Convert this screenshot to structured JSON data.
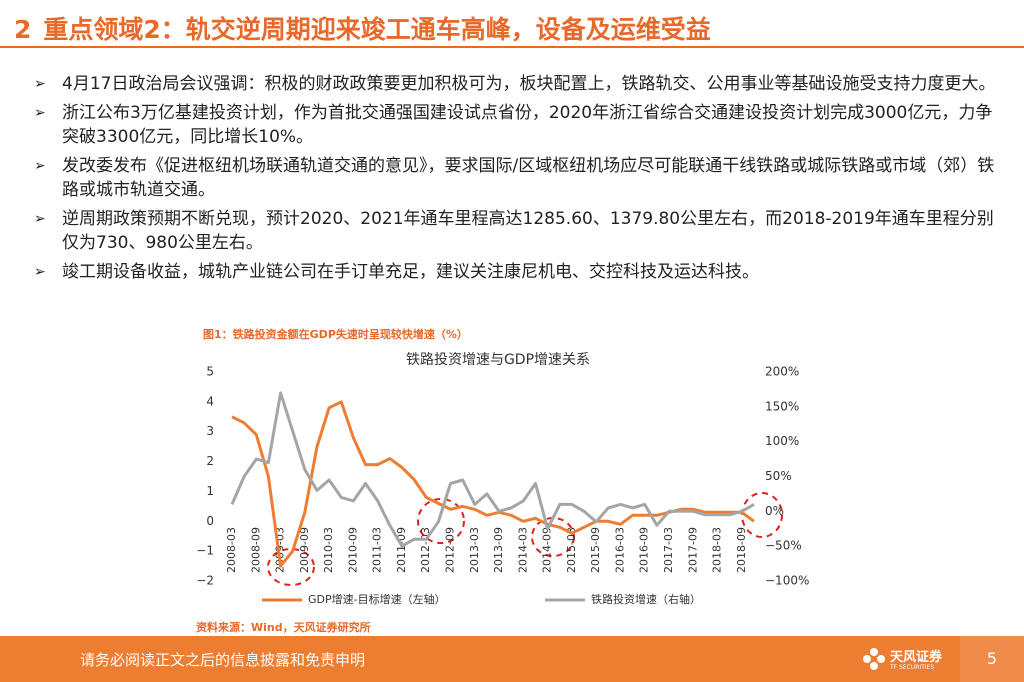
{
  "header": {
    "number": "2",
    "title": "重点领域2：轨交逆周期迎来竣工通车高峰，设备及运维受益"
  },
  "bullets": [
    "4月17日政治局会议强调：积极的财政政策要更加积极可为，板块配置上，铁路轨交、公用事业等基础设施受支持力度更大。",
    "浙江公布3万亿基建投资计划，作为首批交通强国建设试点省份，2020年浙江省综合交通建设投资计划完成3000亿元，力争突破3300亿元，同比增长10%。",
    "发改委发布《促进枢纽机场联通轨道交通的意见》，要求国际/区域枢纽机场应尽可能联通干线铁路或城际铁路或市域（郊）铁路或城市轨道交通。",
    "逆周期政策预期不断兑现，预计2020、2021年通车里程高达1285.60、1379.80公里左右，而2018-2019年通车里程分别仅为730、980公里左右。",
    "竣工期设备收益，城轨产业链公司在手订单充足，建议关注康尼机电、交控科技及运达科技。"
  ],
  "figure": {
    "caption": "图1：铁路投资金额在GDP失速时呈现较快增速（%）",
    "source": "资料来源：Wind，天风证券研究所"
  },
  "chart_data": {
    "type": "line",
    "title": "铁路投资增速与GDP增速关系",
    "categories": [
      "2008-03",
      null,
      "2008-09",
      null,
      "2009-03",
      null,
      "2009-09",
      null,
      "2010-03",
      null,
      "2010-09",
      null,
      "2011-03",
      null,
      "2011-09",
      null,
      "2012-03",
      null,
      "2012-09",
      null,
      "2013-03",
      null,
      "2013-09",
      null,
      "2014-03",
      null,
      "2014-09",
      null,
      "2015-03",
      null,
      "2015-09",
      null,
      "2016-03",
      null,
      "2016-09",
      null,
      "2017-03",
      null,
      "2017-09",
      null,
      "2018-03",
      null,
      "2018-09",
      null
    ],
    "series": [
      {
        "name": "GDP增速-目标增速（左轴）",
        "color": "#ed7d31",
        "axis": "y",
        "values": [
          3.5,
          3.3,
          2.9,
          1.5,
          -1.5,
          -1.0,
          0.3,
          2.5,
          3.8,
          4.0,
          2.8,
          1.9,
          1.9,
          2.1,
          1.8,
          1.4,
          0.8,
          0.6,
          0.4,
          0.5,
          0.4,
          0.2,
          0.3,
          0.2,
          0.0,
          0.1,
          -0.1,
          -0.2,
          -0.4,
          -0.2,
          0.0,
          0.0,
          -0.1,
          0.2,
          0.2,
          0.2,
          0.3,
          0.4,
          0.4,
          0.3,
          0.3,
          0.3,
          0.3,
          0.0
        ]
      },
      {
        "name": "铁路投资增速（右轴）",
        "color": "#a5a5a5",
        "axis": "y2",
        "values": [
          10,
          50,
          75,
          70,
          170,
          115,
          60,
          30,
          45,
          20,
          15,
          40,
          15,
          -20,
          -50,
          -40,
          -40,
          -15,
          40,
          45,
          10,
          25,
          0,
          5,
          15,
          40,
          -25,
          10,
          10,
          0,
          -15,
          5,
          10,
          5,
          10,
          -20,
          0,
          0,
          0,
          -5,
          -5,
          -5,
          0,
          10
        ]
      }
    ],
    "ylim": [
      -2,
      5
    ],
    "yticks": [
      {
        "value": -2,
        "label": "−2"
      },
      {
        "value": -1,
        "label": "−1"
      },
      0,
      1,
      2,
      3,
      4,
      5
    ],
    "y2lim": [
      -100,
      200
    ],
    "y2ticks": [
      {
        "value": -100,
        "label": "−100%"
      },
      {
        "value": -50,
        "label": "−50%"
      },
      {
        "value": 0,
        "label": "0%"
      },
      {
        "value": 50,
        "label": "50%"
      },
      {
        "value": 100,
        "label": "100%"
      },
      {
        "value": 150,
        "label": "150%"
      },
      {
        "value": 200,
        "label": "200%"
      }
    ],
    "legend": "bottom"
  },
  "footer": {
    "disclaimer": "请务必阅读正文之后的信息披露和免责申明",
    "logo": "天风证券",
    "logo_sub": "TF SECURITIES",
    "page": "5"
  }
}
